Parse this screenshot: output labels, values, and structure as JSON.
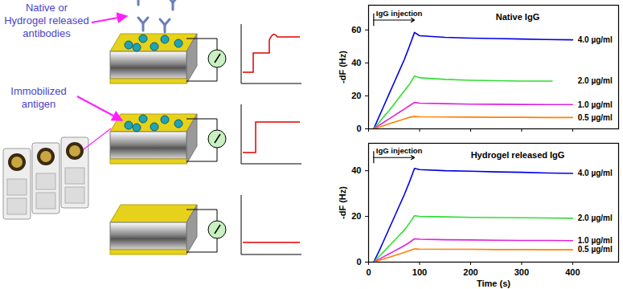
{
  "chart_data": [
    {
      "type": "line",
      "title": "Native IgG",
      "ylabel": "-dF (Hz)",
      "xlim": [
        0,
        490
      ],
      "xticks": [
        0,
        100,
        200,
        300,
        400
      ],
      "ylim": [
        0,
        75
      ],
      "yticks": [
        0,
        20,
        40,
        60
      ],
      "tick_labels": "y",
      "annotations": [
        {
          "text": "IgG injection",
          "x_start": 10,
          "x_end": 90
        }
      ],
      "series": [
        {
          "name": "4.0 µg/ml",
          "color": "#0000e6",
          "x": [
            10,
            20,
            30,
            40,
            50,
            60,
            70,
            80,
            90,
            100,
            150,
            200,
            250,
            300,
            350,
            400
          ],
          "values": [
            0,
            7,
            14,
            21,
            28,
            35,
            42,
            50,
            58.5,
            56.5,
            55.5,
            55,
            54.8,
            54.5,
            54.2,
            54
          ]
        },
        {
          "name": "2.0 µg/ml",
          "color": "#33dd33",
          "x": [
            10,
            20,
            30,
            40,
            50,
            60,
            70,
            80,
            90,
            100,
            150,
            200,
            250,
            300,
            360
          ],
          "values": [
            0,
            3.5,
            7.5,
            11,
            15,
            19,
            23,
            27,
            32,
            31,
            30,
            29.5,
            29.2,
            29,
            29
          ]
        },
        {
          "name": "1.0 µg/ml",
          "color": "#e020e0",
          "x": [
            10,
            20,
            30,
            40,
            50,
            60,
            70,
            80,
            90,
            100,
            150,
            200,
            250,
            300,
            350,
            400
          ],
          "values": [
            0,
            2,
            4,
            6,
            8,
            10,
            12,
            14,
            16,
            15.6,
            15.3,
            15,
            14.9,
            14.8,
            14.7,
            14.7
          ]
        },
        {
          "name": "0.5 µg/ml",
          "color": "#ff8000",
          "x": [
            10,
            20,
            30,
            40,
            50,
            60,
            70,
            80,
            90,
            100,
            150,
            200,
            250,
            300,
            350,
            400
          ],
          "values": [
            0,
            1,
            2,
            3,
            4,
            5,
            6,
            7,
            7.5,
            7.3,
            7.2,
            7.1,
            7,
            7,
            6.9,
            6.9
          ]
        }
      ]
    },
    {
      "type": "line",
      "title": "Hydrogel released IgG",
      "ylabel": "-dF (Hz)",
      "xlabel": "Time (s)",
      "xlim": [
        0,
        490
      ],
      "xticks": [
        0,
        100,
        200,
        300,
        400
      ],
      "ylim": [
        0,
        52
      ],
      "yticks": [
        0,
        20,
        40
      ],
      "tick_labels": true,
      "annotations": [
        {
          "text": "IgG injection",
          "x_start": 10,
          "x_end": 90
        }
      ],
      "series": [
        {
          "name": "4.0 µg/ml",
          "color": "#0000e6",
          "x": [
            10,
            20,
            30,
            40,
            50,
            60,
            70,
            80,
            90,
            100,
            150,
            200,
            250,
            300,
            350,
            400
          ],
          "values": [
            0,
            4.5,
            9.5,
            14.5,
            19.5,
            24.5,
            29.5,
            35,
            41,
            40.5,
            40,
            39.8,
            39.5,
            39.3,
            39,
            38.8
          ]
        },
        {
          "name": "2.0 µg/ml",
          "color": "#33dd33",
          "x": [
            10,
            20,
            30,
            40,
            50,
            60,
            70,
            80,
            90,
            100,
            150,
            200,
            250,
            300,
            350,
            400
          ],
          "values": [
            0,
            2.3,
            4.6,
            7,
            9.3,
            11.7,
            14,
            17,
            20.3,
            20,
            19.8,
            19.6,
            19.5,
            19.4,
            19.3,
            19.2
          ]
        },
        {
          "name": "1.0 µg/ml",
          "color": "#e020e0",
          "x": [
            10,
            20,
            30,
            40,
            50,
            60,
            70,
            80,
            90,
            100,
            150,
            200,
            250,
            300,
            350,
            400
          ],
          "values": [
            0,
            1.2,
            2.4,
            3.6,
            4.8,
            6,
            7.2,
            8.6,
            10.2,
            10,
            9.8,
            9.7,
            9.6,
            9.5,
            9.5,
            9.4
          ]
        },
        {
          "name": "0.5 µg/ml",
          "color": "#ff8000",
          "x": [
            10,
            20,
            30,
            40,
            50,
            60,
            70,
            80,
            90,
            100,
            150,
            200,
            250,
            300,
            350,
            400
          ],
          "values": [
            0,
            0.7,
            1.4,
            2.1,
            2.8,
            3.5,
            4.2,
            5,
            5.8,
            5.7,
            5.6,
            5.6,
            5.5,
            5.5,
            5.4,
            5.4
          ]
        }
      ]
    }
  ],
  "diagram": {
    "labels": [
      {
        "lines": [
          "Native or",
          "Hydrogel released",
          "antibodies"
        ]
      },
      {
        "lines": [
          "Immobilized",
          "antigen"
        ]
      }
    ]
  }
}
